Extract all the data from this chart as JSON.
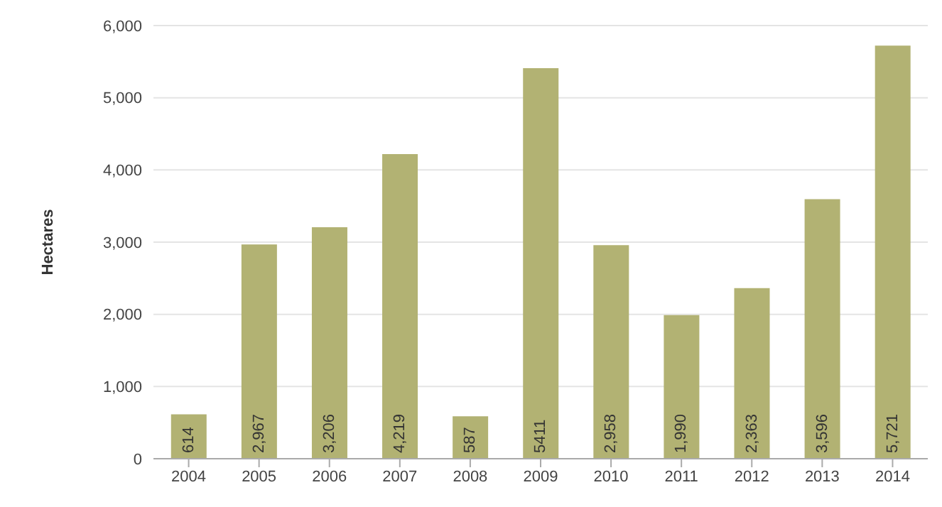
{
  "chart_data": {
    "type": "bar",
    "ylabel": "Hectares",
    "categories": [
      "2004",
      "2005",
      "2006",
      "2007",
      "2008",
      "2009",
      "2010",
      "2011",
      "2012",
      "2013",
      "2014"
    ],
    "values": [
      614,
      2967,
      3206,
      4219,
      587,
      5411,
      2958,
      1990,
      2363,
      3596,
      5721
    ],
    "value_labels": [
      "614",
      "2,967",
      "3,206",
      "4,219",
      "587",
      "5411",
      "2,958",
      "1,990",
      "2,363",
      "3,596",
      "5,721"
    ],
    "color": "#b2b273",
    "ylim": [
      0,
      6000
    ],
    "yticks": [
      {
        "value": 0,
        "label": "0"
      },
      {
        "value": 1000,
        "label": "1,000"
      },
      {
        "value": 2000,
        "label": "2,000"
      },
      {
        "value": 3000,
        "label": "3,000"
      },
      {
        "value": 4000,
        "label": "4,000"
      },
      {
        "value": 5000,
        "label": "5,000"
      },
      {
        "value": 6000,
        "label": "6,000"
      }
    ],
    "grid": "y",
    "legend": false
  }
}
